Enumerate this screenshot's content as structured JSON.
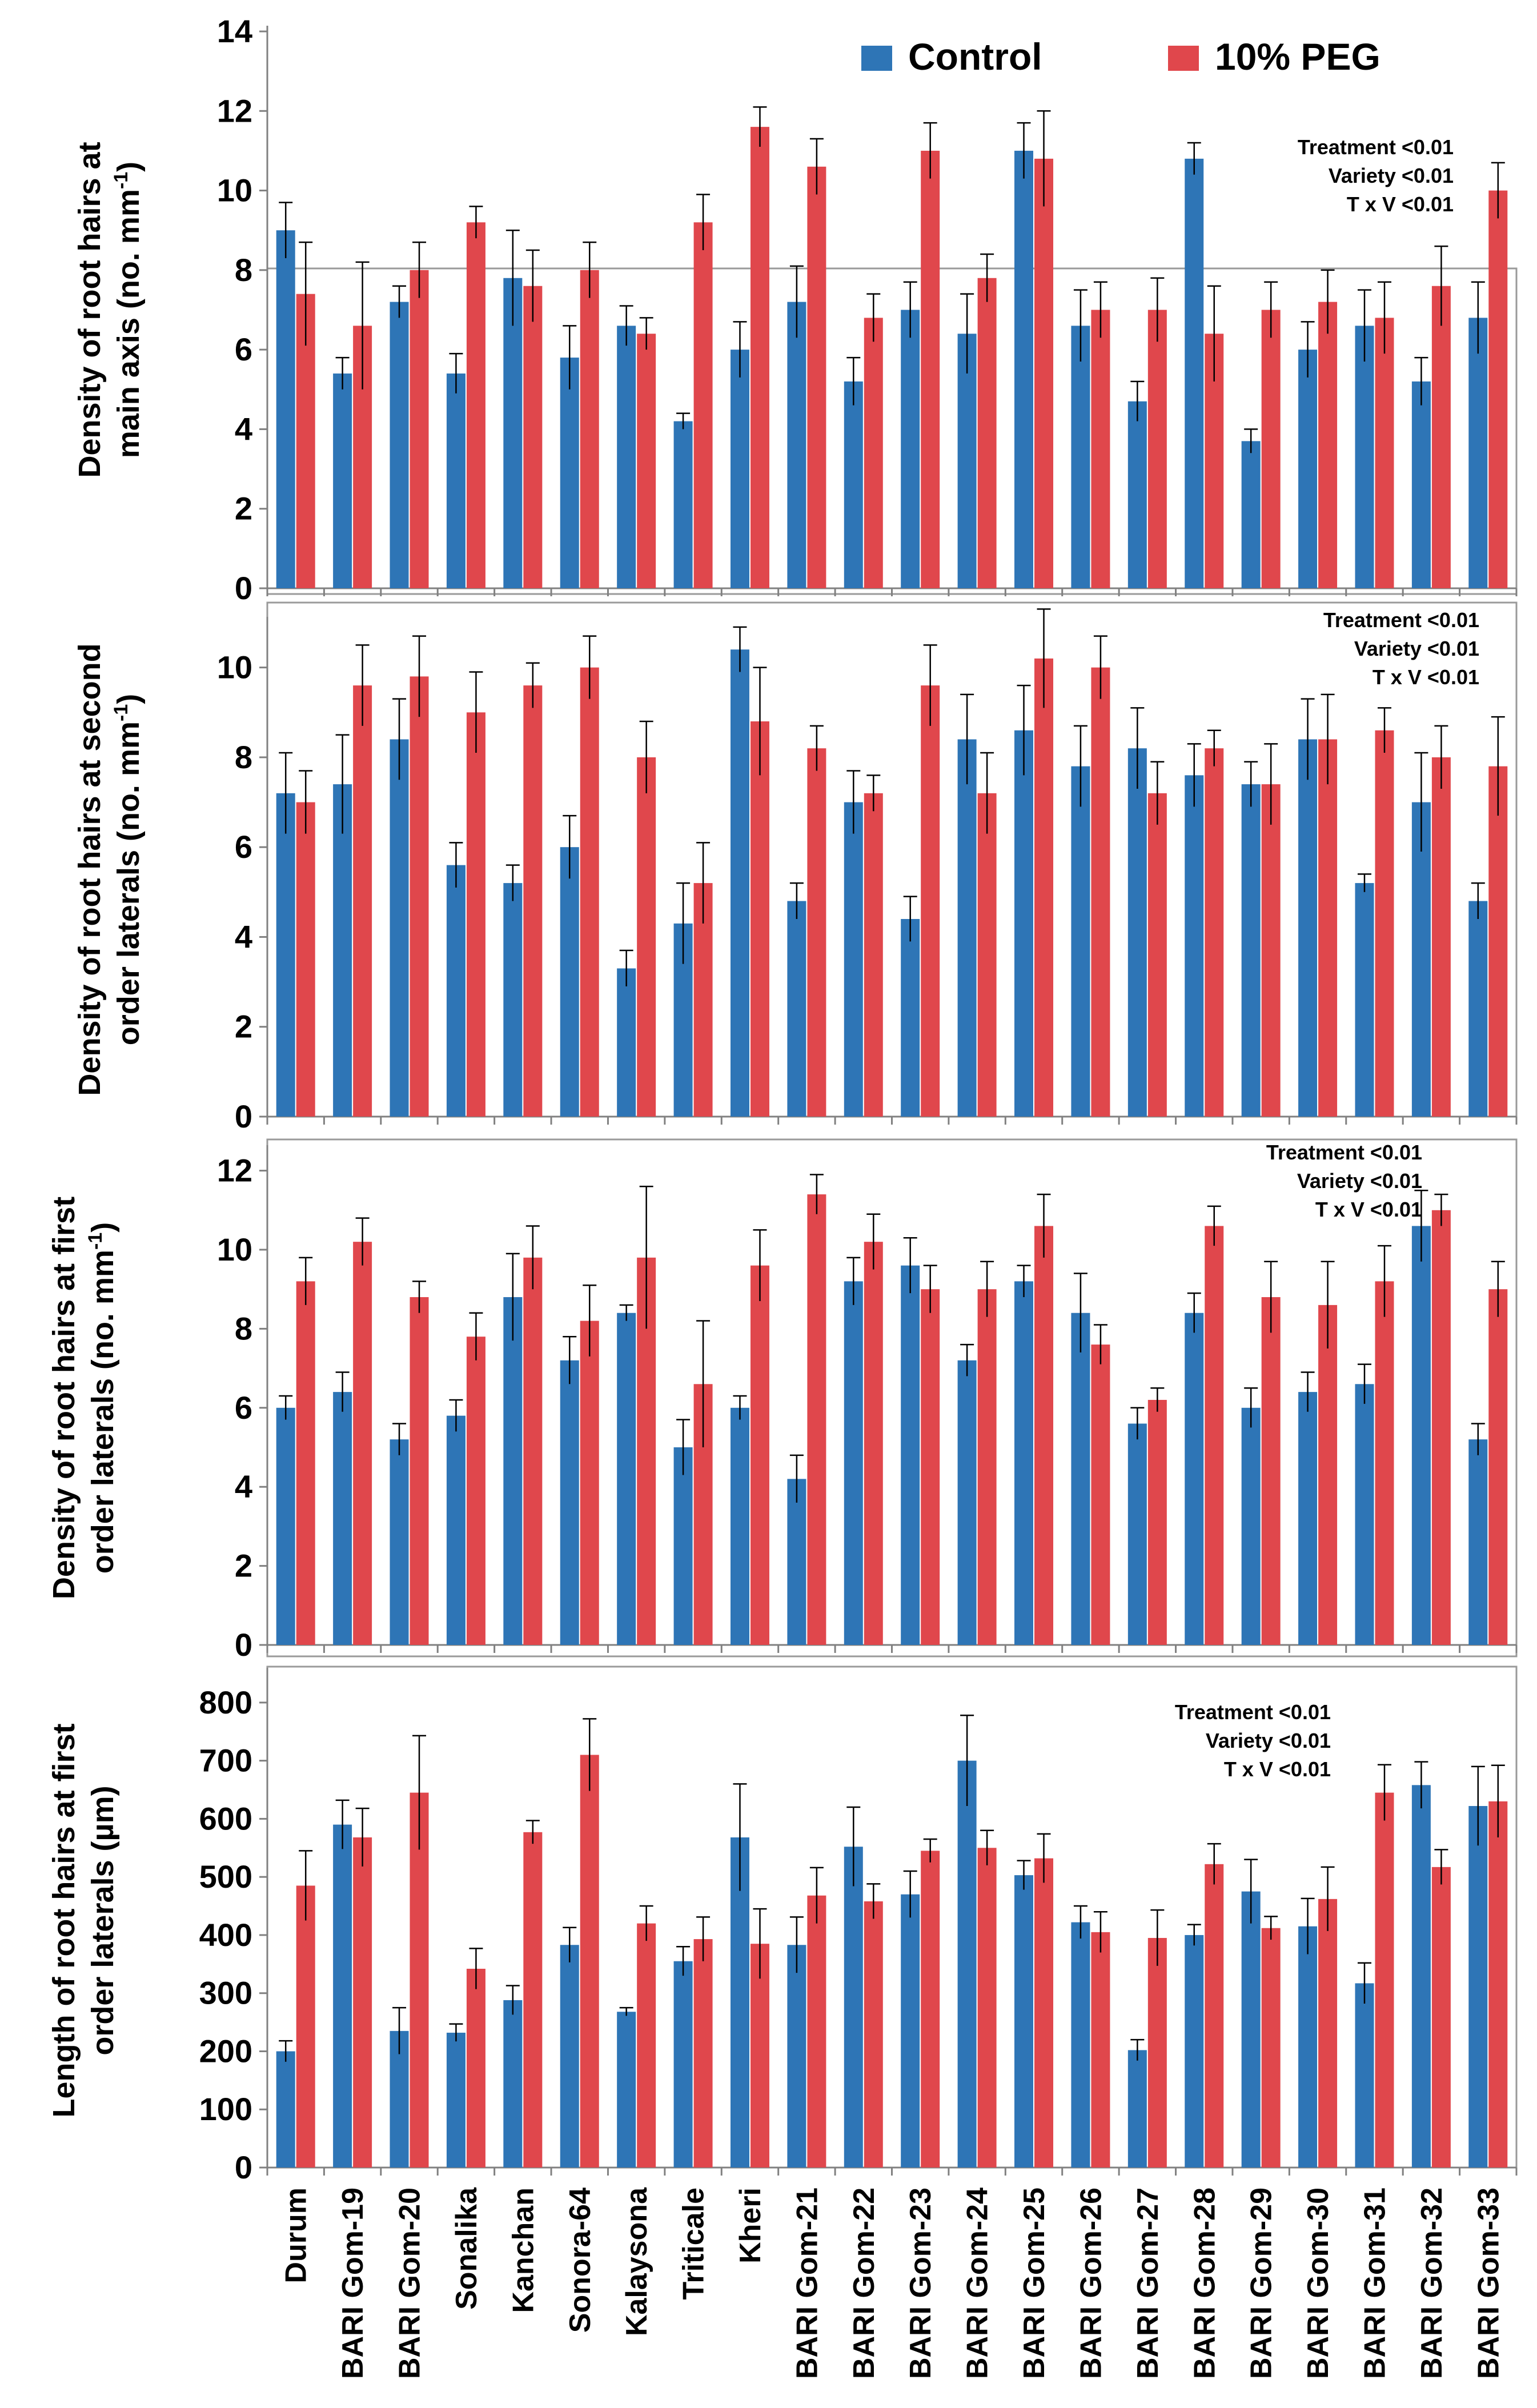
{
  "legend": {
    "series": [
      {
        "name": "Control",
        "color": "#2E75B6"
      },
      {
        "name": "10% PEG",
        "color": "#E0474C"
      }
    ]
  },
  "categories": [
    "Durum",
    "BARI Gom-19",
    "BARI Gom-20",
    "Sonalika",
    "Kanchan",
    "Sonora-64",
    "Kalaysona",
    "Triticale",
    "Kheri",
    "BARI Gom-21",
    "BARI Gom-22",
    "BARI Gom-23",
    "BARI Gom-24",
    "BARI Gom-25",
    "BARI Gom-26",
    "BARI Gom-27",
    "BARI Gom-28",
    "BARI Gom-29",
    "BARI Gom-30",
    "BARI Gom-31",
    "BARI Gom-32",
    "BARI Gom-33"
  ],
  "chart_data": [
    {
      "type": "bar",
      "title": "",
      "ylabel_lines": [
        "Density of root hairs at",
        "main axis (no. mm",
        ")"
      ],
      "ylabel_sup": "-1",
      "ylim": [
        0,
        14
      ],
      "yticks": [
        "0",
        "2",
        "4",
        "6",
        "8",
        "10",
        "12",
        "14"
      ],
      "stats": [
        "Treatment <0.01",
        "Variety <0.01",
        "T x V <0.01"
      ],
      "series": [
        {
          "name": "Control",
          "values": [
            9.0,
            5.4,
            7.2,
            5.4,
            7.8,
            5.8,
            6.6,
            4.2,
            6.0,
            7.2,
            5.2,
            7.0,
            6.4,
            11.0,
            6.6,
            4.7,
            10.8,
            3.7,
            6.0,
            6.6,
            5.2,
            6.8
          ],
          "errors": [
            0.7,
            0.4,
            0.4,
            0.5,
            1.2,
            0.8,
            0.5,
            0.2,
            0.7,
            0.9,
            0.6,
            0.7,
            1.0,
            0.7,
            0.9,
            0.5,
            0.4,
            0.3,
            0.7,
            0.9,
            0.6,
            0.9
          ]
        },
        {
          "name": "10% PEG",
          "values": [
            7.4,
            6.6,
            8.0,
            9.2,
            7.6,
            8.0,
            6.4,
            9.2,
            11.6,
            10.6,
            6.8,
            11.0,
            7.8,
            10.8,
            7.0,
            7.0,
            6.4,
            7.0,
            7.2,
            6.8,
            7.6,
            10.0
          ],
          "errors": [
            1.3,
            1.6,
            0.7,
            0.4,
            0.9,
            0.7,
            0.4,
            0.7,
            0.5,
            0.7,
            0.6,
            0.7,
            0.6,
            1.2,
            0.7,
            0.8,
            1.2,
            0.7,
            0.8,
            0.9,
            1.0,
            0.7
          ]
        }
      ]
    },
    {
      "type": "bar",
      "title": "",
      "ylabel_lines": [
        "Density of root hairs at second",
        "order laterals  (no. mm",
        ")"
      ],
      "ylabel_sup": "-1",
      "ylim": [
        0,
        11
      ],
      "yticks": [
        "0",
        "2",
        "4",
        "6",
        "8",
        "10"
      ],
      "stats": [
        "Treatment <0.01",
        "Variety <0.01",
        "T x V <0.01"
      ],
      "series": [
        {
          "name": "Control",
          "values": [
            7.2,
            7.4,
            8.4,
            5.6,
            5.2,
            6.0,
            3.3,
            4.3,
            10.4,
            4.8,
            7.0,
            4.4,
            8.4,
            8.6,
            7.8,
            8.2,
            7.6,
            7.4,
            8.4,
            5.2,
            7.0,
            4.8
          ],
          "errors": [
            0.9,
            1.1,
            0.9,
            0.5,
            0.4,
            0.7,
            0.4,
            0.9,
            0.5,
            0.4,
            0.7,
            0.5,
            1.0,
            1.0,
            0.9,
            0.9,
            0.7,
            0.5,
            0.9,
            0.2,
            1.1,
            0.4
          ]
        },
        {
          "name": "10% PEG",
          "values": [
            7.0,
            9.6,
            9.8,
            9.0,
            9.6,
            10.0,
            8.0,
            5.2,
            8.8,
            8.2,
            7.2,
            9.6,
            7.2,
            10.2,
            10.0,
            7.2,
            8.2,
            7.4,
            8.4,
            8.6,
            8.0,
            7.8
          ],
          "errors": [
            0.7,
            0.9,
            0.9,
            0.9,
            0.5,
            0.7,
            0.8,
            0.9,
            1.2,
            0.5,
            0.4,
            0.9,
            0.9,
            1.1,
            0.7,
            0.7,
            0.4,
            0.9,
            1.0,
            0.5,
            0.7,
            1.1
          ]
        }
      ]
    },
    {
      "type": "bar",
      "title": "",
      "ylabel_lines": [
        "Density of root hairs at first",
        "order laterals  (no. mm",
        ")"
      ],
      "ylabel_sup": "-1",
      "ylim": [
        0,
        12.5
      ],
      "yticks": [
        "0",
        "2",
        "4",
        "6",
        "8",
        "10",
        "12"
      ],
      "stats": [
        "Treatment <0.01",
        "Variety <0.01",
        "T x V <0.01"
      ],
      "series": [
        {
          "name": "Control",
          "values": [
            6.0,
            6.4,
            5.2,
            5.8,
            8.8,
            7.2,
            8.4,
            5.0,
            6.0,
            4.2,
            9.2,
            9.6,
            7.2,
            9.2,
            8.4,
            5.6,
            8.4,
            6.0,
            6.4,
            6.6,
            10.6,
            5.2
          ],
          "errors": [
            0.3,
            0.5,
            0.4,
            0.4,
            1.1,
            0.6,
            0.2,
            0.7,
            0.3,
            0.6,
            0.6,
            0.7,
            0.4,
            0.4,
            1.0,
            0.4,
            0.5,
            0.5,
            0.5,
            0.5,
            0.9,
            0.4
          ]
        },
        {
          "name": "10% PEG",
          "values": [
            9.2,
            10.2,
            8.8,
            7.8,
            9.8,
            8.2,
            9.8,
            6.6,
            9.6,
            11.4,
            10.2,
            9.0,
            9.0,
            10.6,
            7.6,
            6.2,
            10.6,
            8.8,
            8.6,
            9.2,
            11.0,
            9.0
          ],
          "errors": [
            0.6,
            0.6,
            0.4,
            0.6,
            0.8,
            0.9,
            1.8,
            1.6,
            0.9,
            0.5,
            0.7,
            0.6,
            0.7,
            0.8,
            0.5,
            0.3,
            0.5,
            0.9,
            1.1,
            0.9,
            0.4,
            0.7
          ]
        }
      ]
    },
    {
      "type": "bar",
      "title": "",
      "ylabel_lines": [
        "Length of root hairs at first",
        "order laterals (µm)"
      ],
      "ylabel_sup": "",
      "ylim": [
        0,
        850
      ],
      "yticks": [
        "0",
        "100",
        "200",
        "300",
        "400",
        "500",
        "600",
        "700",
        "800"
      ],
      "stats": [
        "Treatment <0.01",
        "Variety <0.01",
        "T x V <0.01"
      ],
      "series": [
        {
          "name": "Control",
          "values": [
            200,
            590,
            235,
            232,
            288,
            383,
            268,
            355,
            568,
            383,
            552,
            470,
            700,
            503,
            422,
            202,
            400,
            475,
            415,
            317,
            658,
            622
          ],
          "errors": [
            18,
            42,
            40,
            15,
            25,
            30,
            7,
            25,
            92,
            48,
            68,
            40,
            78,
            25,
            28,
            18,
            18,
            55,
            48,
            35,
            40,
            68
          ]
        },
        {
          "name": "10% PEG",
          "values": [
            485,
            568,
            645,
            342,
            577,
            710,
            420,
            393,
            385,
            468,
            458,
            545,
            550,
            532,
            405,
            395,
            522,
            412,
            462,
            645,
            517,
            630
          ],
          "errors": [
            60,
            50,
            98,
            35,
            20,
            62,
            30,
            38,
            60,
            48,
            30,
            20,
            30,
            42,
            35,
            48,
            35,
            20,
            55,
            48,
            30,
            62
          ]
        }
      ]
    }
  ]
}
